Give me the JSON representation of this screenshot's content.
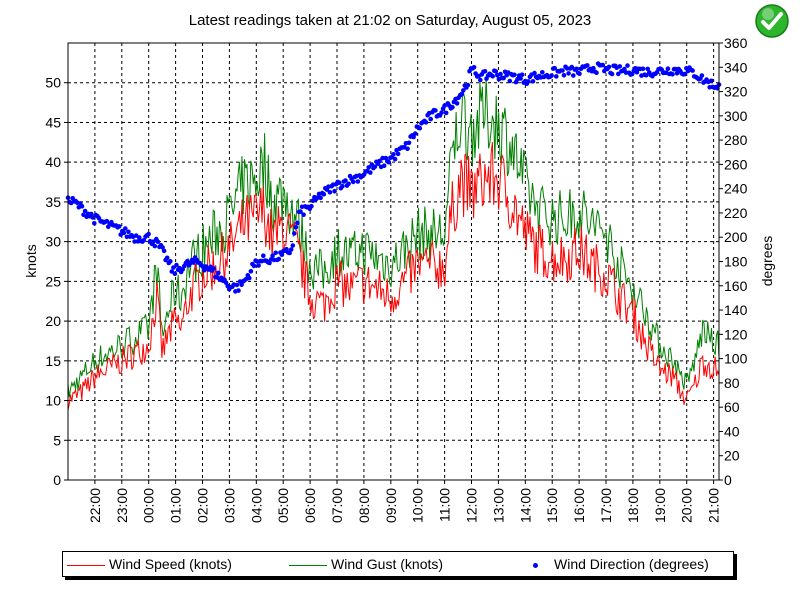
{
  "header": {
    "title": "Latest readings taken at   21:02 on Saturday, August 05, 2023",
    "status_icon": "green-check-icon"
  },
  "colors": {
    "speed": "#ff0000",
    "gust": "#008000",
    "direction": "#0000ff",
    "badge": "#2db52d"
  },
  "legend": {
    "speed": "Wind Speed (knots)",
    "gust": "Wind Gust (knots)",
    "direction": "Wind Direction (degrees)"
  },
  "chart_data": {
    "type": "line",
    "title": "Latest readings taken at   21:02 on Saturday, August 05, 2023",
    "xlabel": "",
    "ylabel": "knots",
    "y2label": "degrees",
    "ylim": [
      0,
      55
    ],
    "y2lim": [
      0,
      360
    ],
    "yticks": [
      0,
      5,
      10,
      15,
      20,
      25,
      30,
      35,
      40,
      45,
      50
    ],
    "y2ticks": [
      0,
      20,
      40,
      60,
      80,
      100,
      120,
      140,
      160,
      180,
      200,
      220,
      240,
      260,
      280,
      300,
      320,
      340,
      360
    ],
    "xlim": [
      -3.0,
      21.2
    ],
    "xticks": [
      -2,
      -1,
      0,
      1,
      2,
      3,
      4,
      5,
      6,
      7,
      8,
      9,
      10,
      11,
      12,
      13,
      14,
      15,
      16,
      17,
      18,
      19,
      20,
      21
    ],
    "xticklabels": [
      "22:00",
      "23:00",
      "00:00",
      "01:00",
      "02:00",
      "03:00",
      "04:00",
      "05:00",
      "06:00",
      "07:00",
      "08:00",
      "09:00",
      "10:00",
      "11:00",
      "12:00",
      "13:00",
      "14:00",
      "15:00",
      "16:00",
      "17:00",
      "18:00",
      "19:00",
      "20:00",
      "21:00"
    ],
    "grid": true,
    "legend_position": "bottom",
    "series": [
      {
        "name": "Wind Speed (knots)",
        "axis": "left",
        "x": [
          -3.0,
          -2.5,
          -2.0,
          -1.5,
          -1.0,
          -0.5,
          0.0,
          0.3,
          0.5,
          0.7,
          1.0,
          1.2,
          1.5,
          2.0,
          2.5,
          3.0,
          3.5,
          4.0,
          4.3,
          4.6,
          5.0,
          5.5,
          6.0,
          6.5,
          7.0,
          7.5,
          8.0,
          8.5,
          9.0,
          9.5,
          10.0,
          10.5,
          11.0,
          11.3,
          11.6,
          12.0,
          12.5,
          13.0,
          13.5,
          14.0,
          14.5,
          15.0,
          15.5,
          16.0,
          16.5,
          17.0,
          17.5,
          18.0,
          18.5,
          19.0,
          19.5,
          19.8,
          20.0,
          20.3,
          20.6,
          21.0
        ],
        "values": [
          10,
          11,
          13,
          14,
          15,
          16,
          17,
          23,
          16,
          18,
          20,
          19,
          23,
          26,
          27,
          29,
          32,
          33,
          34,
          30,
          32,
          29,
          23,
          22,
          25,
          24,
          25,
          24,
          23,
          25,
          27,
          27,
          27,
          34,
          38,
          36,
          38,
          38,
          35,
          31,
          29,
          28,
          28,
          29,
          27,
          26,
          23,
          21,
          17,
          14,
          13,
          11,
          10,
          12,
          15,
          14
        ]
      },
      {
        "name": "Wind Gust (knots)",
        "axis": "left",
        "x": [
          -3.0,
          -2.5,
          -2.0,
          -1.5,
          -1.0,
          -0.5,
          0.0,
          0.3,
          0.5,
          0.7,
          1.0,
          1.2,
          1.5,
          2.0,
          2.5,
          3.0,
          3.5,
          4.0,
          4.3,
          4.6,
          5.0,
          5.5,
          6.0,
          6.5,
          7.0,
          7.5,
          8.0,
          8.5,
          9.0,
          9.5,
          10.0,
          10.5,
          11.0,
          11.3,
          11.6,
          12.0,
          12.5,
          13.0,
          13.5,
          14.0,
          14.5,
          15.0,
          15.5,
          16.0,
          16.5,
          17.0,
          17.5,
          18.0,
          18.5,
          19.0,
          19.5,
          19.8,
          20.0,
          20.3,
          20.6,
          21.0
        ],
        "values": [
          11,
          13,
          15,
          16,
          17,
          18,
          19,
          27,
          18,
          21,
          24,
          23,
          27,
          29,
          31,
          33,
          37,
          38,
          40,
          35,
          36,
          33,
          27,
          26,
          29,
          28,
          29,
          28,
          27,
          29,
          31,
          31,
          31,
          41,
          46,
          44,
          46,
          45,
          42,
          37,
          34,
          33,
          33,
          34,
          32,
          31,
          27,
          24,
          21,
          17,
          15,
          13,
          12,
          15,
          19,
          17
        ]
      },
      {
        "name": "Wind Direction (degrees)",
        "axis": "right",
        "x": [
          -3.0,
          -2.7,
          -2.4,
          -2.0,
          -1.5,
          -1.0,
          -0.5,
          0.0,
          0.3,
          0.6,
          0.9,
          1.2,
          1.5,
          1.8,
          2.2,
          2.6,
          3.0,
          3.3,
          3.6,
          4.0,
          4.5,
          5.0,
          5.3,
          5.6,
          6.0,
          6.4,
          6.8,
          7.2,
          7.8,
          8.4,
          9.0,
          9.6,
          10.0,
          10.5,
          11.0,
          11.5,
          11.8,
          12.0,
          12.4,
          12.8,
          13.2,
          13.6,
          14.0,
          14.5,
          15.0,
          15.5,
          16.0,
          16.5,
          17.0,
          17.5,
          18.0,
          18.5,
          19.0,
          19.5,
          20.0,
          20.3,
          20.6,
          21.0
        ],
        "values": [
          230,
          228,
          222,
          215,
          210,
          205,
          200,
          200,
          195,
          185,
          172,
          175,
          178,
          180,
          175,
          168,
          160,
          158,
          165,
          180,
          182,
          185,
          190,
          220,
          225,
          235,
          240,
          245,
          250,
          258,
          265,
          275,
          290,
          300,
          305,
          315,
          325,
          338,
          332,
          335,
          333,
          332,
          330,
          333,
          335,
          337,
          336,
          340,
          338,
          337,
          338,
          336,
          337,
          338,
          337,
          335,
          330,
          325
        ]
      }
    ]
  }
}
